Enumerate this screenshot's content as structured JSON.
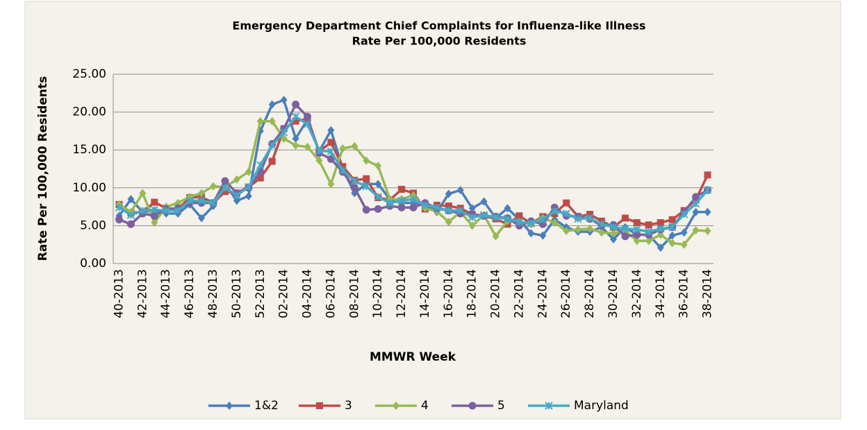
{
  "chart_data": {
    "type": "line",
    "title": "Emergency Department Chief Complaints for Influenza-like Illness",
    "subtitle": "Rate Per 100,000 Residents",
    "x_label": "MMWR Week",
    "y_label": "Rate Per 100,000 Residents",
    "categories": [
      "40-2013",
      null,
      "42-2013",
      null,
      "44-2013",
      null,
      "46-2013",
      null,
      "48-2013",
      null,
      "50-2013",
      null,
      "52-2013",
      null,
      "02-2014",
      null,
      "04-2014",
      null,
      "06-2014",
      null,
      "08-2014",
      null,
      "10-2014",
      null,
      "12-2014",
      null,
      "14-2014",
      null,
      "16-2014",
      null,
      "18-2014",
      null,
      "20-2014",
      null,
      "22-2014",
      null,
      "24-2014",
      null,
      "26-2014",
      null,
      "28-2014",
      null,
      "30-2014",
      null,
      "32-2014",
      null,
      "34-2014",
      null,
      "36-2014",
      null,
      "38-2014"
    ],
    "ylim": [
      0,
      25
    ],
    "yticks": [
      {
        "value": 0,
        "label": "0.00"
      },
      {
        "value": 5,
        "label": "5.00"
      },
      {
        "value": 10,
        "label": "10.00"
      },
      {
        "value": 15,
        "label": "15.00"
      },
      {
        "value": 20,
        "label": "20.00"
      },
      {
        "value": 25,
        "label": "25.00"
      }
    ],
    "grid": true,
    "legend": "bottom",
    "series": [
      {
        "name": "1&2",
        "color": "#4a7ebb",
        "marker": "diamond",
        "values": [
          6.3,
          8.5,
          6.8,
          7.0,
          6.6,
          6.6,
          7.8,
          6.0,
          7.6,
          10.5,
          8.3,
          8.9,
          17.5,
          21.0,
          21.6,
          16.5,
          19.0,
          14.8,
          17.6,
          12.5,
          9.3,
          10.5,
          10.5,
          8.5,
          8.0,
          8.0,
          7.8,
          6.8,
          9.2,
          9.7,
          7.3,
          8.2,
          6.0,
          7.3,
          5.8,
          4.0,
          3.7,
          5.8,
          4.8,
          4.2,
          4.2,
          4.8,
          3.2,
          4.8,
          3.8,
          3.8,
          2.1,
          3.7,
          4.1,
          6.8,
          6.8
        ]
      },
      {
        "name": "3",
        "color": "#be4b48",
        "marker": "square",
        "values": [
          7.8,
          6.7,
          6.8,
          8.1,
          7.3,
          7.2,
          8.7,
          8.8,
          8.0,
          9.5,
          9.3,
          10.1,
          11.3,
          13.5,
          17.8,
          18.8,
          19.1,
          14.8,
          16.0,
          12.8,
          11.0,
          11.2,
          8.7,
          8.4,
          9.8,
          9.3,
          7.2,
          7.7,
          7.6,
          7.3,
          6.5,
          6.3,
          5.9,
          5.2,
          6.3,
          5.3,
          6.2,
          6.6,
          8.0,
          6.2,
          6.5,
          5.6,
          4.8,
          6.0,
          5.4,
          5.1,
          5.4,
          5.8,
          7.0,
          8.4,
          11.7
        ]
      },
      {
        "name": "4",
        "color": "#98b954",
        "marker": "diamond",
        "values": [
          7.8,
          6.8,
          9.3,
          5.4,
          7.5,
          8.0,
          8.8,
          9.3,
          10.2,
          10.1,
          11.1,
          12.1,
          18.8,
          18.8,
          16.5,
          15.6,
          15.4,
          13.6,
          10.5,
          15.2,
          15.5,
          13.6,
          12.9,
          8.5,
          8.5,
          9.0,
          7.3,
          6.9,
          5.5,
          6.8,
          5.0,
          6.4,
          3.6,
          5.6,
          5.5,
          5.2,
          6.0,
          5.4,
          4.3,
          4.5,
          4.6,
          4.1,
          4.0,
          4.3,
          3.0,
          3.0,
          3.8,
          2.7,
          2.5,
          4.4,
          4.3
        ]
      },
      {
        "name": "5",
        "color": "#7d60a0",
        "marker": "circle",
        "values": [
          5.8,
          5.2,
          6.6,
          6.3,
          7.2,
          7.3,
          8.0,
          8.0,
          8.0,
          10.9,
          9.3,
          10.0,
          12.1,
          15.8,
          17.8,
          21.0,
          19.4,
          14.6,
          13.8,
          12.1,
          10.0,
          7.1,
          7.2,
          7.6,
          7.4,
          7.4,
          8.0,
          7.3,
          7.0,
          6.6,
          6.5,
          6.3,
          6.2,
          6.0,
          5.0,
          5.6,
          5.2,
          7.4,
          6.3,
          6.2,
          5.9,
          5.0,
          5.1,
          3.6,
          3.8,
          3.8,
          4.5,
          4.8,
          6.8,
          8.8,
          9.7
        ]
      },
      {
        "name": "Maryland",
        "color": "#46aac5",
        "marker": "star",
        "values": [
          7.4,
          6.4,
          7.0,
          7.1,
          7.0,
          7.0,
          8.3,
          8.3,
          8.0,
          10.0,
          9.0,
          10.1,
          13.0,
          15.6,
          17.3,
          19.4,
          18.4,
          14.9,
          14.8,
          12.3,
          10.9,
          10.2,
          8.8,
          8.0,
          8.3,
          8.5,
          7.7,
          7.4,
          7.0,
          7.0,
          6.1,
          6.4,
          6.1,
          5.9,
          5.5,
          5.3,
          5.8,
          6.9,
          6.6,
          5.9,
          6.0,
          5.2,
          4.8,
          4.6,
          4.5,
          4.2,
          4.6,
          4.8,
          6.5,
          7.9,
          9.7
        ]
      }
    ]
  }
}
